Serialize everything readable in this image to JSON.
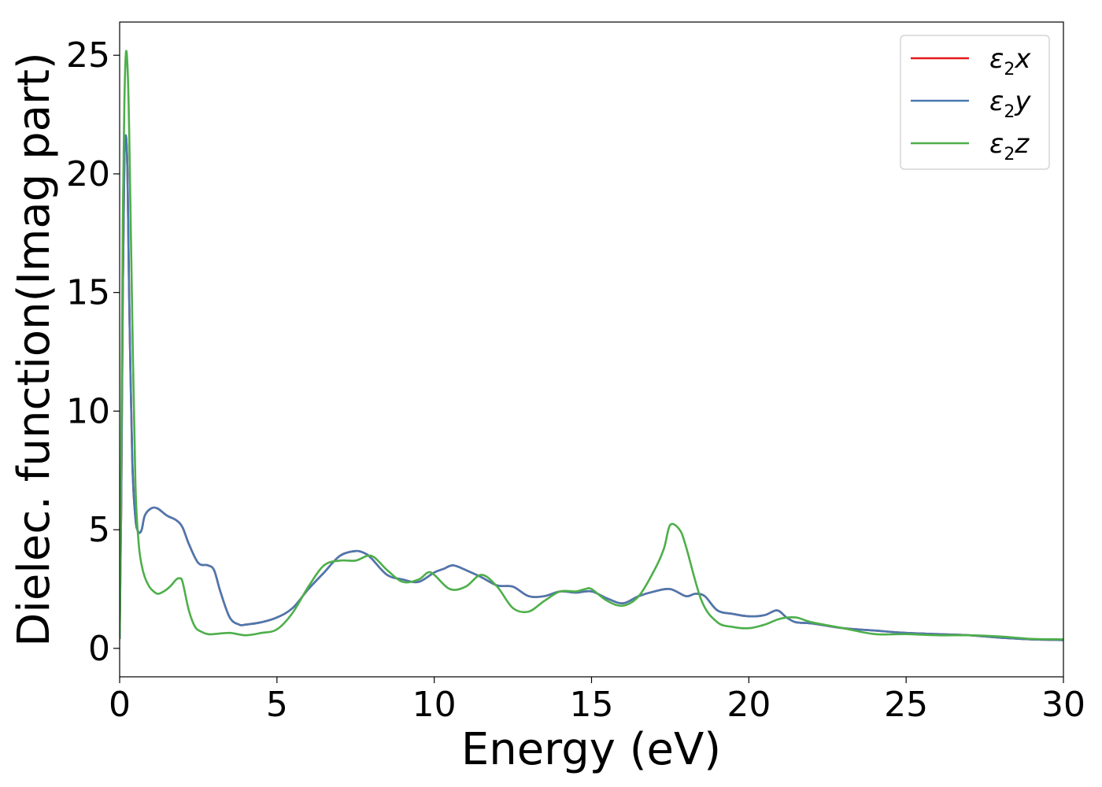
{
  "chart_data": {
    "type": "line",
    "xlabel": "Energy (eV)",
    "ylabel": "Dielec. function(Imag part)",
    "xlim": [
      0,
      30
    ],
    "ylim": [
      -1.2,
      26.4
    ],
    "xticks": [
      0,
      5,
      10,
      15,
      20,
      25,
      30
    ],
    "yticks": [
      0,
      5,
      10,
      15,
      20,
      25
    ],
    "grid": false,
    "legend_position": "top-right",
    "series": [
      {
        "name": "ε2x",
        "legend_symbol": "ε",
        "legend_sub": "2",
        "legend_var": "x",
        "color": "#e41a1c",
        "x": [
          0,
          0.05,
          0.1,
          0.15,
          0.2,
          0.25,
          0.3,
          0.4,
          0.5,
          0.6,
          0.7,
          0.8,
          1.0,
          1.2,
          1.5,
          1.8,
          2.0,
          2.2,
          2.5,
          2.8,
          3.0,
          3.2,
          3.5,
          3.8,
          4.0,
          4.5,
          5.0,
          5.5,
          6.0,
          6.5,
          7.0,
          7.5,
          7.8,
          8.0,
          8.5,
          9.0,
          9.5,
          10.0,
          10.3,
          10.6,
          11.0,
          11.5,
          12.0,
          12.5,
          13.0,
          13.5,
          14.0,
          14.5,
          15.0,
          15.5,
          16.0,
          16.5,
          17.0,
          17.5,
          18.0,
          18.3,
          18.6,
          19.0,
          19.5,
          20.0,
          20.5,
          20.9,
          21.2,
          21.5,
          22.0,
          23.0,
          24.0,
          25.0,
          26.0,
          27.0,
          28.0,
          29.0,
          30.0
        ],
        "y": [
          0.4,
          6,
          15,
          20.5,
          21.6,
          20,
          15,
          8,
          5.5,
          4.9,
          5.0,
          5.6,
          5.9,
          5.9,
          5.6,
          5.4,
          5.1,
          4.4,
          3.6,
          3.5,
          3.3,
          2.4,
          1.3,
          1.0,
          1.0,
          1.1,
          1.3,
          1.7,
          2.5,
          3.2,
          3.9,
          4.1,
          4.0,
          3.8,
          3.1,
          2.9,
          2.8,
          3.2,
          3.35,
          3.5,
          3.3,
          3.0,
          2.65,
          2.6,
          2.2,
          2.2,
          2.4,
          2.35,
          2.4,
          2.1,
          1.9,
          2.2,
          2.4,
          2.5,
          2.2,
          2.3,
          2.2,
          1.6,
          1.45,
          1.35,
          1.4,
          1.6,
          1.3,
          1.1,
          1.05,
          0.85,
          0.75,
          0.65,
          0.6,
          0.55,
          0.45,
          0.38,
          0.35
        ]
      },
      {
        "name": "ε2y",
        "legend_symbol": "ε",
        "legend_sub": "2",
        "legend_var": "y",
        "color": "#4a78b0",
        "x": [
          0,
          0.05,
          0.1,
          0.15,
          0.2,
          0.25,
          0.3,
          0.4,
          0.5,
          0.6,
          0.7,
          0.8,
          1.0,
          1.2,
          1.5,
          1.8,
          2.0,
          2.2,
          2.5,
          2.8,
          3.0,
          3.2,
          3.5,
          3.8,
          4.0,
          4.5,
          5.0,
          5.5,
          6.0,
          6.5,
          7.0,
          7.5,
          7.8,
          8.0,
          8.5,
          9.0,
          9.5,
          10.0,
          10.3,
          10.6,
          11.0,
          11.5,
          12.0,
          12.5,
          13.0,
          13.5,
          14.0,
          14.5,
          15.0,
          15.5,
          16.0,
          16.5,
          17.0,
          17.5,
          18.0,
          18.3,
          18.6,
          19.0,
          19.5,
          20.0,
          20.5,
          20.9,
          21.2,
          21.5,
          22.0,
          23.0,
          24.0,
          25.0,
          26.0,
          27.0,
          28.0,
          29.0,
          30.0
        ],
        "y": [
          0.4,
          6,
          15,
          20.5,
          21.6,
          20,
          15,
          8,
          5.5,
          4.9,
          5.0,
          5.6,
          5.9,
          5.9,
          5.6,
          5.4,
          5.1,
          4.4,
          3.6,
          3.5,
          3.3,
          2.4,
          1.3,
          1.0,
          1.0,
          1.1,
          1.3,
          1.7,
          2.5,
          3.2,
          3.9,
          4.1,
          4.0,
          3.8,
          3.1,
          2.9,
          2.8,
          3.2,
          3.35,
          3.5,
          3.3,
          3.0,
          2.65,
          2.6,
          2.2,
          2.2,
          2.4,
          2.35,
          2.4,
          2.1,
          1.9,
          2.2,
          2.4,
          2.5,
          2.2,
          2.3,
          2.2,
          1.6,
          1.45,
          1.35,
          1.4,
          1.6,
          1.3,
          1.1,
          1.05,
          0.85,
          0.75,
          0.65,
          0.6,
          0.55,
          0.45,
          0.38,
          0.35
        ]
      },
      {
        "name": "ε2z",
        "legend_symbol": "ε",
        "legend_sub": "2",
        "legend_var": "z",
        "color": "#4daf4a",
        "x": [
          0,
          0.05,
          0.1,
          0.15,
          0.2,
          0.25,
          0.3,
          0.4,
          0.5,
          0.6,
          0.7,
          0.8,
          0.9,
          1.0,
          1.2,
          1.4,
          1.6,
          1.8,
          1.9,
          2.0,
          2.2,
          2.4,
          2.6,
          2.8,
          3.0,
          3.5,
          4.0,
          4.5,
          5.0,
          5.5,
          6.0,
          6.5,
          7.0,
          7.5,
          8.0,
          8.5,
          9.0,
          9.5,
          9.8,
          10.0,
          10.5,
          11.0,
          11.5,
          12.0,
          12.5,
          13.0,
          13.5,
          14.0,
          14.5,
          14.8,
          15.0,
          15.5,
          16.0,
          16.5,
          17.0,
          17.3,
          17.5,
          17.8,
          18.0,
          18.5,
          19.0,
          19.5,
          20.0,
          20.5,
          21.0,
          21.5,
          22.0,
          23.0,
          24.0,
          25.0,
          26.0,
          27.0,
          28.0,
          29.0,
          30.0
        ],
        "y": [
          0.4,
          8,
          18,
          23,
          25.1,
          24.5,
          22,
          14,
          7,
          4.5,
          3.5,
          3.0,
          2.7,
          2.5,
          2.3,
          2.4,
          2.6,
          2.9,
          2.95,
          2.8,
          1.6,
          0.9,
          0.7,
          0.6,
          0.6,
          0.65,
          0.55,
          0.65,
          0.8,
          1.5,
          2.6,
          3.5,
          3.7,
          3.7,
          3.9,
          3.3,
          2.8,
          2.9,
          3.2,
          3.1,
          2.5,
          2.6,
          3.1,
          2.6,
          1.7,
          1.55,
          2.0,
          2.4,
          2.4,
          2.5,
          2.5,
          2.0,
          1.8,
          2.2,
          3.3,
          4.2,
          5.2,
          5.0,
          4.3,
          2.0,
          1.1,
          0.9,
          0.85,
          1.0,
          1.25,
          1.3,
          1.1,
          0.85,
          0.6,
          0.6,
          0.55,
          0.55,
          0.5,
          0.4,
          0.38
        ]
      }
    ]
  }
}
